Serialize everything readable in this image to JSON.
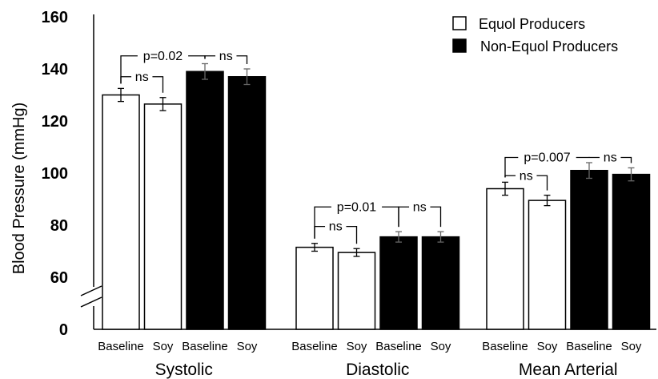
{
  "chart_data": {
    "type": "bar",
    "ylabel": "Blood Pressure (mmHg)",
    "y_axis_break": {
      "below": 60,
      "above": 0
    },
    "yticks": [
      {
        "value": 0,
        "label": "0"
      },
      {
        "value": 60,
        "label": "60"
      },
      {
        "value": 80,
        "label": "80"
      },
      {
        "value": 100,
        "label": "100"
      },
      {
        "value": 120,
        "label": "120"
      },
      {
        "value": 140,
        "label": "140"
      },
      {
        "value": 160,
        "label": "160"
      }
    ],
    "ylim": [
      0,
      160
    ],
    "grid": false,
    "legend_position": "top-right",
    "series": [
      {
        "name": "Equol Producers",
        "color": "#ffffff"
      },
      {
        "name": "Non-Equol Producers",
        "color": "#000000"
      }
    ],
    "groups": [
      {
        "label": "Systolic",
        "bars": [
          {
            "series": 0,
            "category": "Baseline",
            "value": 130,
            "error": 2.5
          },
          {
            "series": 0,
            "category": "Soy",
            "value": 126.5,
            "error": 2.5
          },
          {
            "series": 1,
            "category": "Baseline",
            "value": 139,
            "error": 3
          },
          {
            "series": 1,
            "category": "Soy",
            "value": 137,
            "error": 3
          }
        ],
        "annotations": [
          {
            "label": "p=0.02",
            "from": 0,
            "to": 2,
            "value": 145
          },
          {
            "label": "ns",
            "from": 0,
            "to": 1,
            "value": 137
          },
          {
            "label": "ns",
            "from": 2,
            "to": 3,
            "value": 145
          }
        ]
      },
      {
        "label": "Diastolic",
        "bars": [
          {
            "series": 0,
            "category": "Baseline",
            "value": 71.5,
            "error": 1.5
          },
          {
            "series": 0,
            "category": "Soy",
            "value": 69.5,
            "error": 1.5
          },
          {
            "series": 1,
            "category": "Baseline",
            "value": 75.5,
            "error": 2
          },
          {
            "series": 1,
            "category": "Soy",
            "value": 75.5,
            "error": 2
          }
        ],
        "annotations": [
          {
            "label": "p=0.01",
            "from": 0,
            "to": 2,
            "value": 87
          },
          {
            "label": "ns",
            "from": 0,
            "to": 1,
            "value": 79.5
          },
          {
            "label": "ns",
            "from": 2,
            "to": 3,
            "value": 87
          }
        ]
      },
      {
        "label": "Mean Arterial",
        "bars": [
          {
            "series": 0,
            "category": "Baseline",
            "value": 94,
            "error": 2.5
          },
          {
            "series": 0,
            "category": "Soy",
            "value": 89.5,
            "error": 2
          },
          {
            "series": 1,
            "category": "Baseline",
            "value": 101,
            "error": 3
          },
          {
            "series": 1,
            "category": "Soy",
            "value": 99.5,
            "error": 2.5
          }
        ],
        "annotations": [
          {
            "label": "p=0.007",
            "from": 0,
            "to": 2,
            "value": 106
          },
          {
            "label": "ns",
            "from": 0,
            "to": 1,
            "value": 99
          },
          {
            "label": "ns",
            "from": 2,
            "to": 3,
            "value": 106
          }
        ]
      }
    ]
  }
}
